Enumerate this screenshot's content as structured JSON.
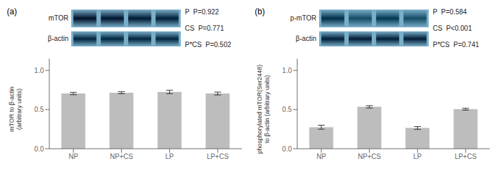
{
  "chart_data": [
    {
      "type": "bar",
      "title": "(a)",
      "categories": [
        "NP",
        "NP+CS",
        "LP",
        "LP+CS"
      ],
      "values": [
        0.705,
        0.715,
        0.725,
        0.705
      ],
      "errors": [
        0.015,
        0.013,
        0.022,
        0.018
      ],
      "ylabel": "mTOR to β-actin\n(arbitrary units)",
      "ylim": [
        0.0,
        1.15
      ],
      "yticks": [
        {
          "value": 0.0,
          "label": "0.0"
        },
        0.5,
        {
          "value": 1.0,
          "label": "1.0"
        }
      ],
      "color": "#bdbdbd",
      "blots": [
        {
          "label": "mTOR",
          "color": "#7aafc9",
          "darkness": [
            160,
            155,
            150,
            145
          ]
        },
        {
          "label": "β-actin",
          "color": "#7aafc9",
          "darkness": [
            140,
            138,
            140,
            138
          ]
        }
      ],
      "annotations": [
        "P  P=0.922",
        "CS  P=0.771",
        "P*CS  P=0.502"
      ]
    },
    {
      "type": "bar",
      "title": "(b)",
      "categories": [
        "NP",
        "NP+CS",
        "LP",
        "LP+CS"
      ],
      "values": [
        0.275,
        0.535,
        0.265,
        0.505
      ],
      "errors": [
        0.025,
        0.015,
        0.018,
        0.012
      ],
      "ylabel": "phosphorylated mTOR(Ser2448)\nto β-actin (arbitrary units)",
      "ylim": [
        0.0,
        1.15
      ],
      "yticks": [
        {
          "value": 0.0,
          "label": "0.0"
        },
        0.5,
        {
          "value": 1.0,
          "label": "1.0"
        }
      ],
      "color": "#bdbdbd",
      "blots": [
        {
          "label": "p-mTOR",
          "color": "#7aafc9",
          "darkness": [
            130,
            100,
            120,
            100
          ]
        },
        {
          "label": "β-actin",
          "color": "#7aafc9",
          "darkness": [
            145,
            148,
            145,
            148
          ]
        }
      ],
      "annotations": [
        "P  P=0.584",
        "CS  P<0.001",
        "P*CS  P=0.741"
      ]
    }
  ]
}
